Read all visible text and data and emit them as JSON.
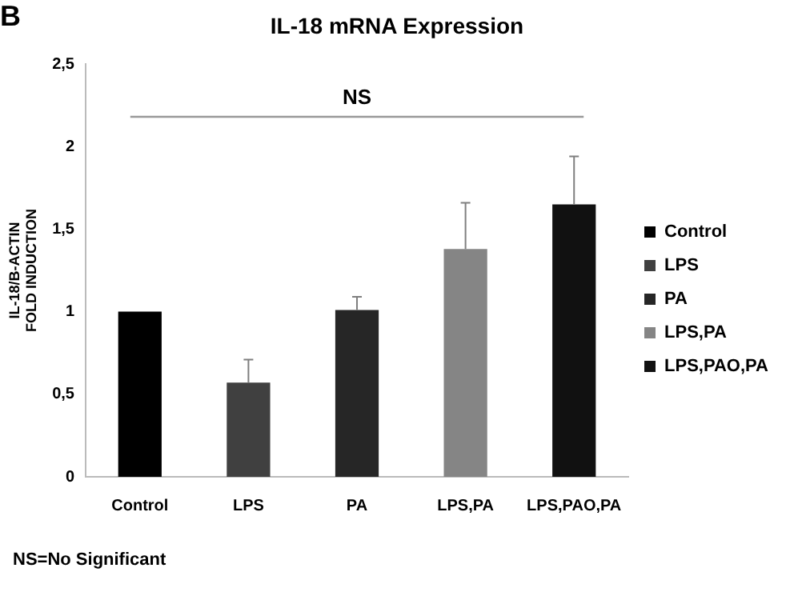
{
  "chart_data": {
    "type": "bar",
    "title": "IL-18 mRNA Expression",
    "ylabel": "IL-18/B-ACTIN\nFOLD INDUCTION",
    "categories": [
      "Control",
      "LPS",
      "PA",
      "LPS,PA",
      "LPS,PAO,PA"
    ],
    "series": [
      {
        "name": "Control",
        "color": "#000000",
        "values": [
          1.0,
          null,
          null,
          null,
          null
        ]
      },
      {
        "name": "LPS",
        "color": "#404040",
        "values": [
          null,
          0.57,
          null,
          null,
          null
        ],
        "errors": [
          null,
          [
            0.57,
            0.71
          ],
          null,
          null,
          null
        ]
      },
      {
        "name": "PA",
        "color": "#262626",
        "values": [
          null,
          null,
          1.01,
          null,
          null
        ],
        "errors": [
          null,
          null,
          [
            1.01,
            1.09
          ],
          null,
          null
        ]
      },
      {
        "name": "LPS,PA",
        "color": "#858585",
        "values": [
          null,
          null,
          null,
          1.38,
          null
        ],
        "errors": [
          null,
          null,
          null,
          [
            1.38,
            1.66
          ],
          null
        ]
      },
      {
        "name": "LPS,PAO,PA",
        "color": "#111111",
        "values": [
          null,
          null,
          null,
          null,
          1.65
        ],
        "errors": [
          null,
          null,
          null,
          null,
          [
            1.65,
            1.94
          ]
        ]
      }
    ],
    "ylim": [
      0,
      2.5
    ],
    "yticks": [
      0,
      {
        "value": 0.5,
        "label": "0,5"
      },
      1,
      {
        "value": 1.5,
        "label": "1,5"
      },
      2,
      {
        "value": 2.5,
        "label": "2,5"
      }
    ],
    "grid": false,
    "legend": "right",
    "ref_lines": [
      {
        "axis": "y",
        "value": 2.18,
        "label": "NS",
        "color": "#999999"
      }
    ],
    "annotations": [
      "B",
      "NS=No Significant"
    ]
  }
}
